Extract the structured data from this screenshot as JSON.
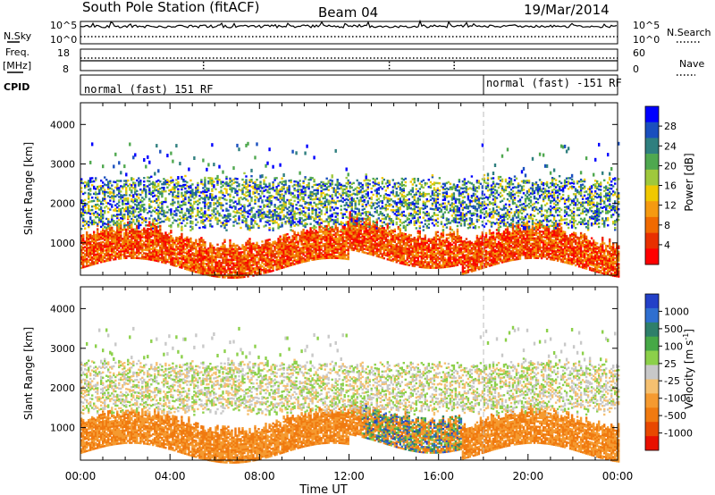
{
  "header": {
    "station": "South Pole Station (fitACF)",
    "beam": "Beam 04",
    "date": "19/Mar/2014"
  },
  "sky_panel": {
    "left_label": "N.Sky",
    "left_ticks": [
      "10^5",
      "10^0"
    ],
    "right_ticks": [
      "10^5",
      "10^0"
    ],
    "right_label": "N.Search"
  },
  "freq_panel": {
    "label_line1": "Freq.",
    "label_line2": "[MHz]",
    "left_ticks": [
      "18",
      "8"
    ],
    "right_ticks": [
      "60",
      "0"
    ],
    "right_label": "Nave"
  },
  "cpid_panel": {
    "label": "CPID",
    "program_1": "normal (fast) 151 RF",
    "program_2": "normal (fast) -151 RF"
  },
  "chart_data": [
    {
      "type": "heatmap",
      "name": "power",
      "ylabel": "Slant Range [km]",
      "ylim": [
        180,
        4550
      ],
      "yticks": [
        1000,
        2000,
        3000,
        4000
      ],
      "xlabel": "Time UT",
      "xlim": [
        0,
        24
      ],
      "xticks": [
        "00:00",
        "04:00",
        "08:00",
        "12:00",
        "16:00",
        "20:00",
        "00:00"
      ],
      "colorbar": {
        "label": "Power [dB]",
        "ticks": [
          "4",
          "8",
          "12",
          "16",
          "20",
          "24",
          "28"
        ],
        "colors": [
          "#0000ff",
          "#1a4fbe",
          "#2f7f7f",
          "#4fa84f",
          "#9fc83c",
          "#f0c800",
          "#f59a10",
          "#f06a00",
          "#e83000",
          "#ff0000"
        ]
      }
    },
    {
      "type": "heatmap",
      "name": "velocity",
      "ylabel": "Slant Range [km]",
      "ylim": [
        180,
        4550
      ],
      "yticks": [
        1000,
        2000,
        3000,
        4000
      ],
      "xlabel": "Time UT",
      "xlim": [
        0,
        24
      ],
      "xticks": [
        "00:00",
        "04:00",
        "08:00",
        "12:00",
        "16:00",
        "20:00",
        "00:00"
      ],
      "colorbar": {
        "label": "Velocity [m s",
        "label_sup": "-1",
        "ticks": [
          "1000",
          "500",
          "100",
          "25",
          "-25",
          "-100",
          "-500",
          "-1000"
        ],
        "colors": [
          "#2340c8",
          "#2f6fd0",
          "#2e7f6a",
          "#46a846",
          "#8cd04a",
          "#c8c8c8",
          "#f5c070",
          "#f59a30",
          "#f07a10",
          "#e84800",
          "#e81000"
        ]
      }
    }
  ]
}
